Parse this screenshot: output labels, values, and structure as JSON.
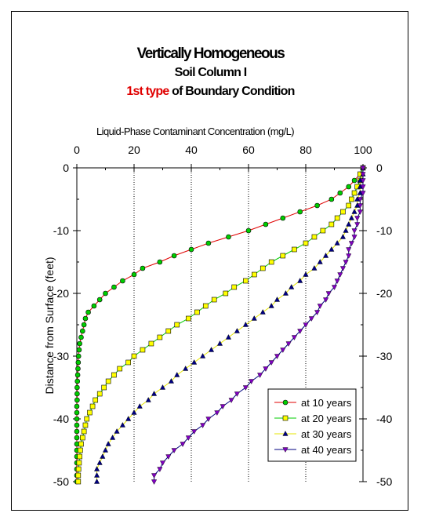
{
  "title": {
    "line1": "Vertically Homogeneous",
    "line2": "Soil Column I",
    "line3_highlight": "1st type",
    "line3_rest": " of Boundary Condition",
    "highlight_color": "#e00000"
  },
  "chart_data": {
    "type": "line",
    "xlabel": "Liquid-Phase Contaminant Concentration (mg/L)",
    "ylabel": "Distance from Surface (feet)",
    "xlim": [
      0,
      100
    ],
    "ylim": [
      -50,
      0
    ],
    "x_ticks": [
      "0",
      "20",
      "40",
      "60",
      "80",
      "100"
    ],
    "y_ticks": [
      "0",
      "-10",
      "-20",
      "-30",
      "-40",
      "-50"
    ],
    "x_axis_position": "top",
    "y_axis_right_mirror": true,
    "grid": "vertical dotted",
    "legend_position": "bottom-right",
    "series": [
      {
        "name": "at 10 years",
        "marker": "circle",
        "line_color": "#e00000",
        "marker_fill": "#00cc00",
        "points": [
          [
            100,
            0
          ],
          [
            99,
            -1
          ],
          [
            97,
            -2
          ],
          [
            95,
            -3
          ],
          [
            92,
            -4
          ],
          [
            89,
            -5
          ],
          [
            84,
            -6
          ],
          [
            78,
            -7
          ],
          [
            72,
            -8
          ],
          [
            66,
            -9
          ],
          [
            60,
            -10
          ],
          [
            53,
            -11
          ],
          [
            46,
            -12
          ],
          [
            40,
            -13
          ],
          [
            34,
            -14
          ],
          [
            29,
            -15
          ],
          [
            23,
            -16
          ],
          [
            20,
            -17
          ],
          [
            16,
            -18
          ],
          [
            13,
            -19
          ],
          [
            10,
            -20
          ],
          [
            8,
            -21
          ],
          [
            6,
            -22
          ],
          [
            4,
            -23
          ],
          [
            3,
            -24
          ],
          [
            2.5,
            -25
          ],
          [
            2,
            -26
          ],
          [
            1.5,
            -27
          ],
          [
            1,
            -28
          ],
          [
            0.8,
            -29
          ],
          [
            0.6,
            -30
          ],
          [
            0.5,
            -31
          ],
          [
            0.4,
            -32
          ],
          [
            0.3,
            -33
          ],
          [
            0.2,
            -34
          ],
          [
            0.1,
            -35
          ],
          [
            0.1,
            -36
          ],
          [
            0.1,
            -37
          ],
          [
            0,
            -38
          ],
          [
            0,
            -39
          ],
          [
            0,
            -40
          ],
          [
            0,
            -41
          ],
          [
            0,
            -42
          ],
          [
            0,
            -43
          ],
          [
            0,
            -44
          ],
          [
            0,
            -45
          ],
          [
            0,
            -46
          ],
          [
            0,
            -47
          ],
          [
            0,
            -48
          ],
          [
            0,
            -49
          ],
          [
            0,
            -50
          ]
        ]
      },
      {
        "name": "at 20 years",
        "marker": "square",
        "line_color": "#00cc00",
        "marker_fill": "#ffff00",
        "points": [
          [
            100,
            0
          ],
          [
            99,
            -1
          ],
          [
            99,
            -2
          ],
          [
            98,
            -3
          ],
          [
            97,
            -4
          ],
          [
            96,
            -5
          ],
          [
            95,
            -6
          ],
          [
            93,
            -7
          ],
          [
            91,
            -8
          ],
          [
            89,
            -9
          ],
          [
            86,
            -10
          ],
          [
            83,
            -11
          ],
          [
            80,
            -12
          ],
          [
            76,
            -13
          ],
          [
            72,
            -14
          ],
          [
            68,
            -15
          ],
          [
            65,
            -16
          ],
          [
            62,
            -17
          ],
          [
            59,
            -18
          ],
          [
            55,
            -19
          ],
          [
            52,
            -20
          ],
          [
            48,
            -21
          ],
          [
            45,
            -22
          ],
          [
            42,
            -23
          ],
          [
            39,
            -24
          ],
          [
            35,
            -25
          ],
          [
            32,
            -26
          ],
          [
            29,
            -27
          ],
          [
            26,
            -28
          ],
          [
            23,
            -29
          ],
          [
            20,
            -30
          ],
          [
            18,
            -31
          ],
          [
            15,
            -32
          ],
          [
            13,
            -33
          ],
          [
            11,
            -34
          ],
          [
            9.5,
            -35
          ],
          [
            8,
            -36
          ],
          [
            6.5,
            -37
          ],
          [
            5.5,
            -38
          ],
          [
            4.5,
            -39
          ],
          [
            3.5,
            -40
          ],
          [
            3,
            -41
          ],
          [
            2.5,
            -42
          ],
          [
            2,
            -43
          ],
          [
            1.5,
            -44
          ],
          [
            1.2,
            -45
          ],
          [
            1,
            -46
          ],
          [
            0.8,
            -47
          ],
          [
            0.6,
            -48
          ],
          [
            0.5,
            -49
          ],
          [
            0.5,
            -50
          ]
        ]
      },
      {
        "name": "at 30 years",
        "marker": "triangle",
        "line_color": "#e6e600",
        "marker_fill": "#000080",
        "points": [
          [
            100,
            0
          ],
          [
            100,
            -1
          ],
          [
            99,
            -2
          ],
          [
            99,
            -3
          ],
          [
            99,
            -4
          ],
          [
            98,
            -5
          ],
          [
            98,
            -6
          ],
          [
            97,
            -7
          ],
          [
            96,
            -8
          ],
          [
            95,
            -9
          ],
          [
            94,
            -10
          ],
          [
            93,
            -11
          ],
          [
            91,
            -12
          ],
          [
            89,
            -13
          ],
          [
            87,
            -14
          ],
          [
            85,
            -15
          ],
          [
            83,
            -16
          ],
          [
            80,
            -17
          ],
          [
            78,
            -18
          ],
          [
            75,
            -19
          ],
          [
            73,
            -20
          ],
          [
            70,
            -21
          ],
          [
            68,
            -22
          ],
          [
            65,
            -23
          ],
          [
            62,
            -24
          ],
          [
            59,
            -25
          ],
          [
            56,
            -26
          ],
          [
            53,
            -27
          ],
          [
            50,
            -28
          ],
          [
            47,
            -29
          ],
          [
            44,
            -30
          ],
          [
            41,
            -31
          ],
          [
            38,
            -32
          ],
          [
            35,
            -33
          ],
          [
            33,
            -34
          ],
          [
            30,
            -35
          ],
          [
            27,
            -36
          ],
          [
            25,
            -37
          ],
          [
            22,
            -38
          ],
          [
            20,
            -39
          ],
          [
            18,
            -40
          ],
          [
            16,
            -41
          ],
          [
            14,
            -42
          ],
          [
            12.5,
            -43
          ],
          [
            11,
            -44
          ],
          [
            10,
            -45
          ],
          [
            9,
            -46
          ],
          [
            8,
            -47
          ],
          [
            7,
            -48
          ],
          [
            7,
            -49
          ],
          [
            7,
            -50
          ]
        ]
      },
      {
        "name": "at 40 years",
        "marker": "triangle-down",
        "line_color": "#000080",
        "marker_fill": "#8000c0",
        "points": [
          [
            100,
            0
          ],
          [
            100,
            -1
          ],
          [
            100,
            -2
          ],
          [
            100,
            -3
          ],
          [
            100,
            -4
          ],
          [
            99,
            -5
          ],
          [
            99,
            -6
          ],
          [
            99,
            -7
          ],
          [
            98,
            -8
          ],
          [
            98,
            -9
          ],
          [
            97,
            -10
          ],
          [
            97,
            -11
          ],
          [
            96,
            -12
          ],
          [
            95,
            -13
          ],
          [
            95,
            -14
          ],
          [
            94,
            -15
          ],
          [
            93,
            -16
          ],
          [
            92,
            -17
          ],
          [
            91,
            -18
          ],
          [
            90,
            -19
          ],
          [
            88,
            -20
          ],
          [
            87,
            -21
          ],
          [
            85,
            -22
          ],
          [
            84,
            -23
          ],
          [
            82,
            -24
          ],
          [
            80,
            -25
          ],
          [
            78,
            -26
          ],
          [
            76,
            -27
          ],
          [
            74,
            -28
          ],
          [
            72,
            -29
          ],
          [
            70,
            -30
          ],
          [
            68,
            -31
          ],
          [
            66,
            -32
          ],
          [
            64,
            -33
          ],
          [
            61,
            -34
          ],
          [
            59,
            -35
          ],
          [
            56,
            -36
          ],
          [
            54,
            -37
          ],
          [
            51,
            -38
          ],
          [
            49,
            -39
          ],
          [
            46,
            -40
          ],
          [
            44,
            -41
          ],
          [
            41,
            -42
          ],
          [
            39,
            -43
          ],
          [
            37,
            -44
          ],
          [
            34,
            -45
          ],
          [
            32,
            -46
          ],
          [
            30,
            -47
          ],
          [
            29,
            -48
          ],
          [
            27,
            -49
          ],
          [
            27,
            -50
          ]
        ]
      }
    ]
  }
}
